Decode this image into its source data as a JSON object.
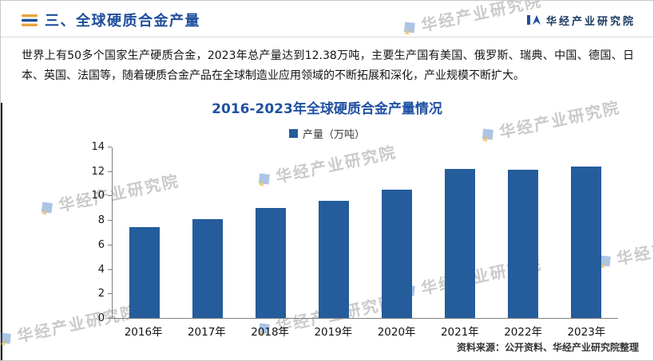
{
  "header": {
    "title": "三、全球硬质合金产量",
    "logo_text": "华经产业研究院"
  },
  "body": {
    "paragraph": "世界上有50多个国家生产硬质合金，2023年总产量达到12.38万吨，主要生产国有美国、俄罗斯、瑞典、中国、德国、日本、英国、法国等，随着硬质合金产品在全球制造业应用领域的不断拓展和深化，产业规模不断扩大。"
  },
  "chart_data": {
    "type": "bar",
    "title": "2016-2023年全球硬质合金产量情况",
    "legend": "产量（万吨）",
    "categories": [
      "2016年",
      "2017年",
      "2018年",
      "2019年",
      "2020年",
      "2021年",
      "2022年",
      "2023年"
    ],
    "values": [
      7.4,
      8.1,
      9.0,
      9.6,
      10.5,
      12.2,
      12.1,
      12.38
    ],
    "xlabel": "",
    "ylabel": "",
    "ylim": [
      0,
      14
    ],
    "yticks": [
      0,
      2,
      4,
      6,
      8,
      10,
      12,
      14
    ],
    "bar_color": "#255C9C",
    "grid": false,
    "legend_position": "top"
  },
  "footer": {
    "source": "资料来源：公开资料、华经产业研究院整理"
  },
  "watermark": {
    "text": "华经产业研究院"
  },
  "colors": {
    "title_blue": "#1F4E9C",
    "chart_title_blue": "#2052A2",
    "bar_blue": "#255C9C",
    "accent_orange": "#E8A33D"
  }
}
